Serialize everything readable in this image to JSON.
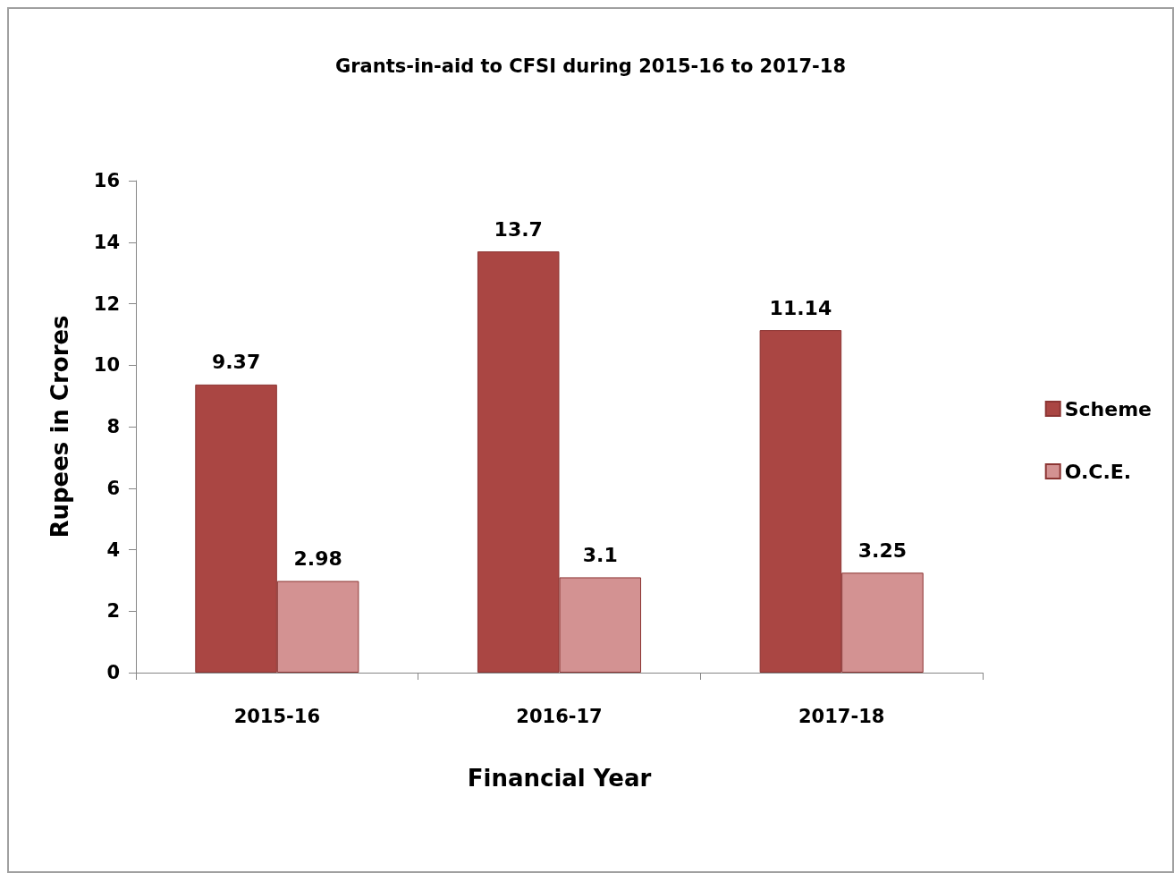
{
  "chart_data": {
    "type": "bar",
    "title": "Grants-in-aid to CFSI during 2015-16 to 2017-18",
    "xlabel": "Financial Year",
    "ylabel": "Rupees in Crores",
    "categories": [
      "2015-16",
      "2016-17",
      "2017-18"
    ],
    "series": [
      {
        "name": "Scheme",
        "color": "#aa4643",
        "values": [
          9.37,
          13.7,
          11.14
        ]
      },
      {
        "name": "O.C.E.",
        "color": "#d39292",
        "values": [
          2.98,
          3.1,
          3.25
        ]
      }
    ],
    "ylim": [
      0,
      16
    ],
    "yticks": [
      0,
      2,
      4,
      6,
      8,
      10,
      12,
      14,
      16
    ],
    "grid": false,
    "legend": "right",
    "data_labels": true
  }
}
